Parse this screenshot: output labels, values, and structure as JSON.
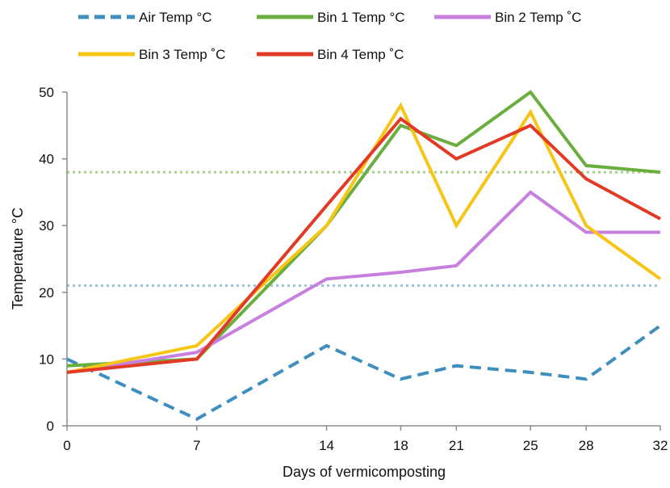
{
  "chart_data": {
    "type": "line",
    "title": "",
    "xlabel": "Days of vermicomposting",
    "ylabel": "Temperature °C",
    "categories": [
      "0",
      "7",
      "14",
      "18",
      "21",
      "25",
      "28",
      "32"
    ],
    "ylim": [
      0,
      50
    ],
    "yticks": [
      "0",
      "10",
      "20",
      "30",
      "40",
      "50"
    ],
    "grid": false,
    "legend_position": "top",
    "series": [
      {
        "name": "Air Temp °C",
        "values": [
          10,
          1,
          12,
          7,
          9,
          8,
          7,
          15
        ],
        "color": "#3f8fbe",
        "style": "dashed"
      },
      {
        "name": "Bin 1 Temp °C",
        "values": [
          9,
          10,
          30,
          45,
          42,
          50,
          39,
          38
        ],
        "color": "#6aae3e",
        "style": "solid"
      },
      {
        "name": "Bin 2 Temp ˚C",
        "values": [
          8,
          11,
          22,
          23,
          24,
          35,
          29,
          29
        ],
        "color": "#c77fe0",
        "style": "solid"
      },
      {
        "name": "Bin 3 Temp ˚C",
        "values": [
          8,
          12,
          30,
          48,
          30,
          47,
          30,
          22
        ],
        "color": "#f7c516",
        "style": "solid"
      },
      {
        "name": "Bin 4 Temp ˚C",
        "values": [
          8,
          10,
          33,
          46,
          40,
          45,
          37,
          31
        ],
        "color": "#e23a24",
        "style": "solid"
      }
    ],
    "reference_lines": [
      {
        "value": 38,
        "color": "#a6d18b"
      },
      {
        "value": 21,
        "color": "#9cc7df"
      }
    ]
  }
}
